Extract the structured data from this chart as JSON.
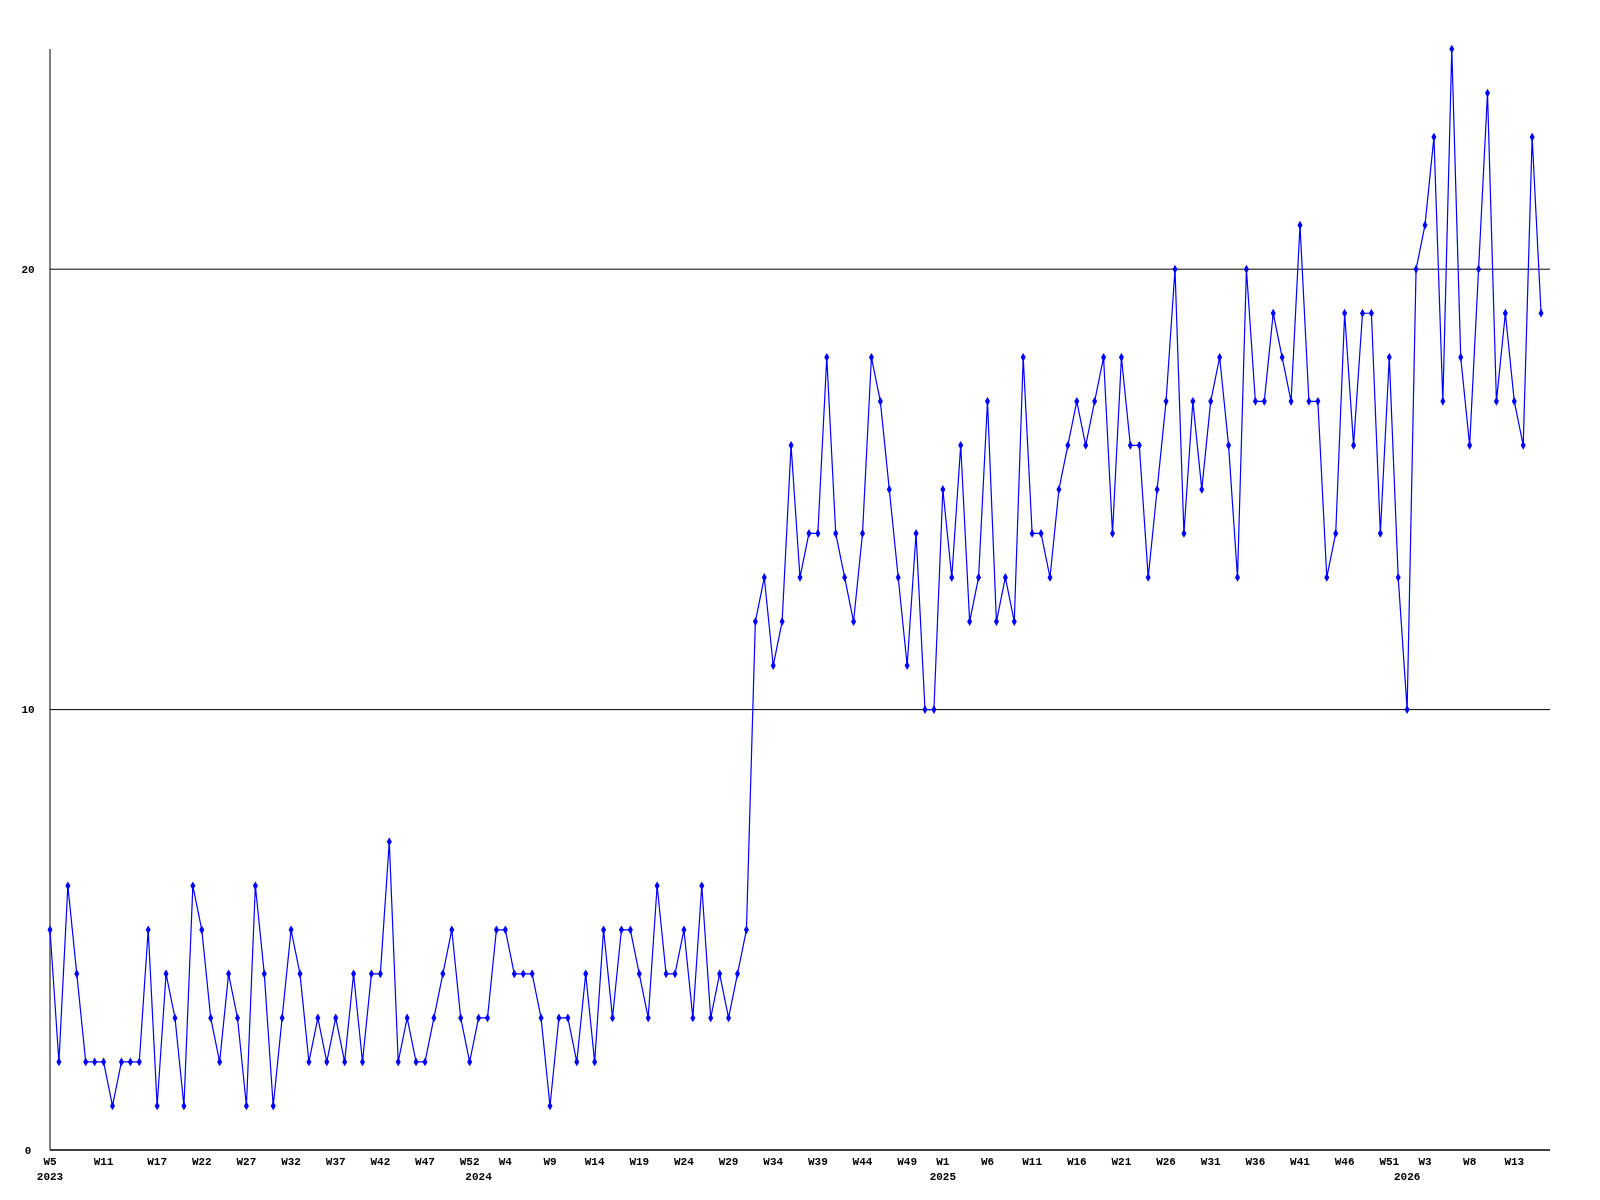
{
  "chart_data": {
    "type": "line",
    "categories": [
      "W5\n2023",
      null,
      null,
      null,
      null,
      null,
      "W11",
      null,
      null,
      null,
      null,
      null,
      "W17",
      null,
      null,
      null,
      null,
      "W22",
      null,
      null,
      null,
      null,
      "W27",
      null,
      null,
      null,
      null,
      "W32",
      null,
      null,
      null,
      null,
      "W37",
      null,
      null,
      null,
      null,
      "W42",
      null,
      null,
      null,
      null,
      "W47",
      null,
      null,
      null,
      null,
      "W52",
      "\n2024",
      null,
      null,
      "W4",
      null,
      null,
      null,
      null,
      "W9",
      null,
      null,
      null,
      null,
      "W14",
      null,
      null,
      null,
      null,
      "W19",
      null,
      null,
      null,
      null,
      "W24",
      null,
      null,
      null,
      null,
      "W29",
      null,
      null,
      null,
      null,
      "W34",
      null,
      null,
      null,
      null,
      "W39",
      null,
      null,
      null,
      null,
      "W44",
      null,
      null,
      null,
      null,
      "W49",
      null,
      null,
      null,
      "W1\n2025",
      null,
      null,
      null,
      null,
      "W6",
      null,
      null,
      null,
      null,
      "W11",
      null,
      null,
      null,
      null,
      "W16",
      null,
      null,
      null,
      null,
      "W21",
      null,
      null,
      null,
      null,
      "W26",
      null,
      null,
      null,
      null,
      "W31",
      null,
      null,
      null,
      null,
      "W36",
      null,
      null,
      null,
      null,
      "W41",
      null,
      null,
      null,
      null,
      "W46",
      null,
      null,
      null,
      null,
      "W51",
      null,
      "\n2026",
      null,
      "W3",
      null,
      null,
      null,
      null,
      "W8",
      null,
      null,
      null,
      null,
      "W13",
      null,
      null,
      null
    ],
    "series": [
      {
        "color": "#0000ff",
        "values": [
          5,
          2,
          6,
          4,
          2,
          2,
          2,
          1,
          2,
          2,
          2,
          5,
          1,
          4,
          3,
          1,
          6,
          5,
          3,
          2,
          4,
          3,
          1,
          6,
          4,
          1,
          3,
          5,
          4,
          2,
          3,
          2,
          3,
          2,
          4,
          2,
          4,
          4,
          7,
          2,
          3,
          2,
          2,
          3,
          4,
          5,
          3,
          2,
          3,
          3,
          5,
          5,
          4,
          4,
          4,
          3,
          1,
          3,
          3,
          2,
          4,
          2,
          5,
          3,
          5,
          5,
          4,
          3,
          6,
          4,
          4,
          5,
          3,
          6,
          3,
          4,
          3,
          4,
          5,
          12,
          13,
          11,
          12,
          16,
          13,
          14,
          14,
          18,
          14,
          13,
          12,
          14,
          18,
          17,
          15,
          13,
          11,
          14,
          10,
          10,
          15,
          13,
          16,
          12,
          13,
          17,
          12,
          13,
          12,
          18,
          14,
          14,
          13,
          15,
          16,
          17,
          16,
          17,
          18,
          14,
          18,
          16,
          16,
          13,
          15,
          17,
          20,
          14,
          17,
          15,
          17,
          18,
          16,
          13,
          20,
          17,
          17,
          19,
          18,
          17,
          21,
          17,
          17,
          13,
          14,
          19,
          16,
          19,
          19,
          14,
          18,
          13,
          10,
          20,
          21,
          23,
          17,
          25,
          18,
          16,
          20,
          24,
          17,
          19,
          17,
          16,
          23,
          19
        ]
      }
    ],
    "ylim": [
      0,
      25
    ],
    "yticks": [
      0,
      10,
      20
    ],
    "grid": "y",
    "marker": "diamond",
    "line_style": "solid"
  }
}
